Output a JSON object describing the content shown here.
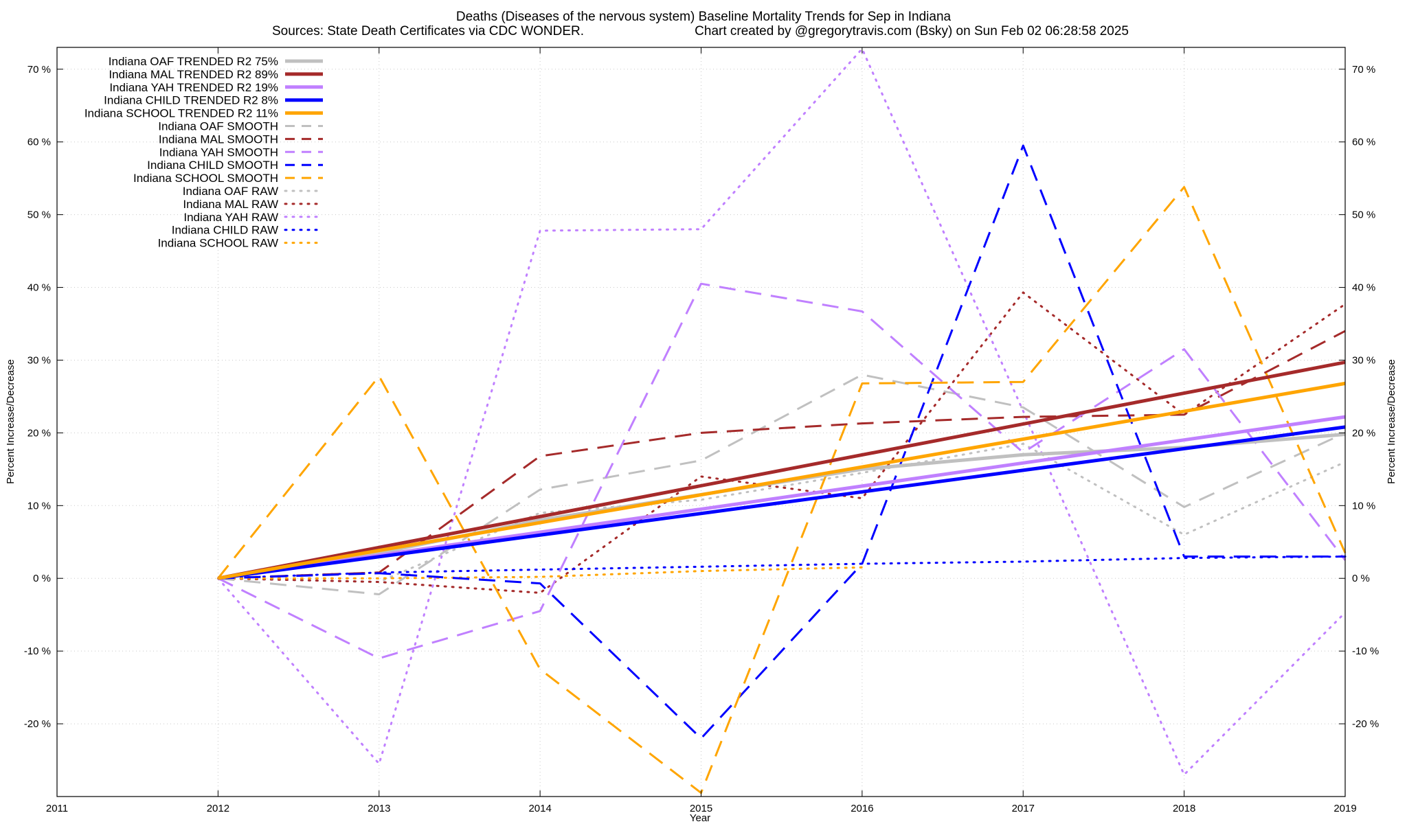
{
  "chart_data": {
    "type": "line",
    "title": "Deaths (Diseases of the nervous system)  Baseline Mortality Trends for Sep in Indiana",
    "subtitle_left": "Sources: State Death Certificates via CDC WONDER.",
    "subtitle_right": "Chart created by @gregorytravis.com (Bsky) on Sun Feb 02 06:28:58 2025",
    "xlabel": "Year",
    "ylabel": "Percent Increase/Decrease",
    "y2label": "Percent Increase/Decrease",
    "xlim": [
      2011,
      2019
    ],
    "ylim": [
      -30,
      73
    ],
    "x_ticks": [
      2011,
      2012,
      2013,
      2014,
      2015,
      2016,
      2017,
      2018,
      2019
    ],
    "y_ticks": [
      -20,
      -10,
      0,
      10,
      20,
      30,
      40,
      50,
      60,
      70
    ],
    "y_tick_labels": [
      "-20 %",
      "-10 %",
      "0 %",
      "10 %",
      "20 %",
      "30 %",
      "40 %",
      "50 %",
      "60 %",
      "70 %"
    ],
    "grid": true,
    "legend_position": "top-left",
    "series": [
      {
        "name": "Indiana OAF TRENDED R2  75%",
        "style": "solid",
        "color": "#c0c0c0",
        "width": 5,
        "x": [
          2012,
          2013,
          2014,
          2015,
          2016,
          2017,
          2018,
          2019
        ],
        "values": [
          0,
          3.5,
          8,
          11.5,
          15,
          17,
          18,
          19.8
        ]
      },
      {
        "name": "Indiana MAL TRENDED R2  89%",
        "style": "solid",
        "color": "#a52a2a",
        "width": 5,
        "x": [
          2012,
          2019
        ],
        "values": [
          0,
          29.7
        ]
      },
      {
        "name": "Indiana YAH TRENDED R2  19%",
        "style": "solid",
        "color": "#c080ff",
        "width": 5,
        "x": [
          2012,
          2019
        ],
        "values": [
          0,
          22.2
        ]
      },
      {
        "name": "Indiana CHILD TRENDED R2   8%",
        "style": "solid",
        "color": "#0000ff",
        "width": 5,
        "x": [
          2012,
          2019
        ],
        "values": [
          0,
          20.8
        ]
      },
      {
        "name": "Indiana SCHOOL TRENDED R2  11%",
        "style": "solid",
        "color": "#ffa500",
        "width": 5,
        "x": [
          2012,
          2019
        ],
        "values": [
          0,
          26.8
        ]
      },
      {
        "name": "Indiana OAF SMOOTH",
        "style": "dashed",
        "color": "#c0c0c0",
        "width": 3,
        "x": [
          2012,
          2013,
          2014,
          2015,
          2016,
          2017,
          2018,
          2019
        ],
        "values": [
          0,
          -2.2,
          12.2,
          16.2,
          28,
          23.5,
          9.8,
          20
        ]
      },
      {
        "name": "Indiana MAL SMOOTH",
        "style": "dashed",
        "color": "#a52a2a",
        "width": 3,
        "x": [
          2012,
          2013,
          2014,
          2015,
          2016,
          2017,
          2018,
          2019
        ],
        "values": [
          0,
          0.8,
          16.8,
          20,
          21.3,
          22.2,
          22.5,
          34
        ]
      },
      {
        "name": "Indiana YAH SMOOTH",
        "style": "dashed",
        "color": "#c080ff",
        "width": 3,
        "x": [
          2012,
          2013,
          2014,
          2015,
          2016,
          2017,
          2018,
          2019
        ],
        "values": [
          0,
          -11,
          -4.5,
          40.5,
          36.7,
          17.3,
          31.5,
          2.5
        ]
      },
      {
        "name": "Indiana CHILD SMOOTH",
        "style": "dashed",
        "color": "#0000ff",
        "width": 3,
        "x": [
          2012,
          2013,
          2014,
          2015,
          2016,
          2017,
          2018,
          2019
        ],
        "values": [
          0,
          0.7,
          -0.7,
          -22,
          2,
          59.5,
          3,
          3
        ]
      },
      {
        "name": "Indiana SCHOOL SMOOTH",
        "style": "dashed",
        "color": "#ffa500",
        "width": 3,
        "x": [
          2012,
          2013,
          2014,
          2015,
          2016,
          2017,
          2018,
          2019
        ],
        "values": [
          0,
          27.8,
          -12.5,
          -29.5,
          26.8,
          27,
          53.8,
          3.5
        ]
      },
      {
        "name": "Indiana OAF RAW",
        "style": "dotted",
        "color": "#c0c0c0",
        "width": 3,
        "x": [
          2012,
          2013,
          2014,
          2015,
          2016,
          2017,
          2018,
          2019
        ],
        "values": [
          0,
          -0.5,
          9,
          10.8,
          14.5,
          18.5,
          6,
          16
        ]
      },
      {
        "name": "Indiana MAL RAW",
        "style": "dotted",
        "color": "#a52a2a",
        "width": 3,
        "x": [
          2012,
          2013,
          2014,
          2015,
          2016,
          2017,
          2018,
          2019
        ],
        "values": [
          0,
          -0.5,
          -2,
          14,
          11,
          39.3,
          22.5,
          37.7
        ]
      },
      {
        "name": "Indiana YAH RAW",
        "style": "dotted",
        "color": "#c080ff",
        "width": 3,
        "x": [
          2012,
          2013,
          2014,
          2015,
          2016,
          2017,
          2018,
          2019
        ],
        "values": [
          0,
          -25.5,
          47.8,
          48,
          72.8,
          23,
          -27,
          -4.7
        ]
      },
      {
        "name": "Indiana CHILD RAW",
        "style": "dotted",
        "color": "#0000ff",
        "width": 3,
        "x": [
          2012,
          2013,
          2014,
          2015,
          2016,
          2017,
          2018,
          2019
        ],
        "values": [
          0,
          0.8,
          1.2,
          1.6,
          2,
          2.3,
          2.8,
          3
        ]
      },
      {
        "name": "Indiana SCHOOL RAW",
        "style": "dotted",
        "color": "#ffa500",
        "width": 3,
        "x": [
          2012,
          2013,
          2014,
          2015,
          2016
        ],
        "values": [
          0,
          0,
          0.2,
          1,
          1.5
        ]
      }
    ]
  }
}
